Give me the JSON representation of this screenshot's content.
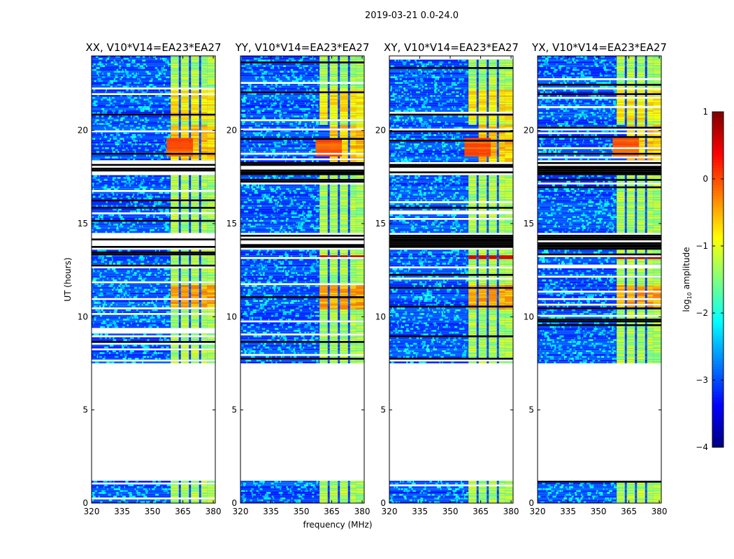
{
  "figure": {
    "suptitle": "2019-03-21 0.0-24.0"
  },
  "chart_data": {
    "type": "heatmap",
    "panels": [
      {
        "title": "XX, V10*V14=EA23*EA27",
        "strong_band": "none"
      },
      {
        "title": "YY, V10*V14=EA23*EA27",
        "strong_band": "13.1 h"
      },
      {
        "title": "XY, V10*V14=EA23*EA27",
        "strong_band": "13.1 h"
      },
      {
        "title": "YX, V10*V14=EA23*EA27",
        "strong_band": "13.1 h"
      }
    ],
    "xlabel": "frequency (MHz)",
    "ylabel": "UT (hours)",
    "xlim": [
      320,
      381
    ],
    "ylim": [
      0,
      24
    ],
    "xticks": [
      320,
      335,
      350,
      365,
      380
    ],
    "xtick_labels": [
      "320",
      "335",
      "350",
      "365",
      "380"
    ],
    "yticks": [
      0,
      5,
      10,
      15,
      20
    ],
    "ytick_labels": [
      "0",
      "5",
      "10",
      "15",
      "20"
    ],
    "data_ranges_hours": [
      [
        0.0,
        1.2
      ],
      [
        7.5,
        24.0
      ]
    ],
    "flagged_blocks_hours": [
      [
        13.5,
        14.4
      ],
      [
        17.5,
        18.3
      ]
    ],
    "rfi_channels_mhz": [
      [
        359,
        363
      ],
      [
        364,
        368
      ],
      [
        369,
        373
      ],
      [
        374,
        377
      ],
      [
        377,
        381
      ]
    ],
    "colorbar": {
      "label_prefix": "log",
      "label_sub": "10",
      "label_suffix": " amplitude",
      "vmin": -4,
      "vmax": 1,
      "ticks": [
        -4,
        -3,
        -2,
        -1,
        0,
        1
      ],
      "tick_labels": [
        "−4",
        "−3",
        "−2",
        "−1",
        "0",
        "1"
      ],
      "colormap": "jet"
    }
  }
}
